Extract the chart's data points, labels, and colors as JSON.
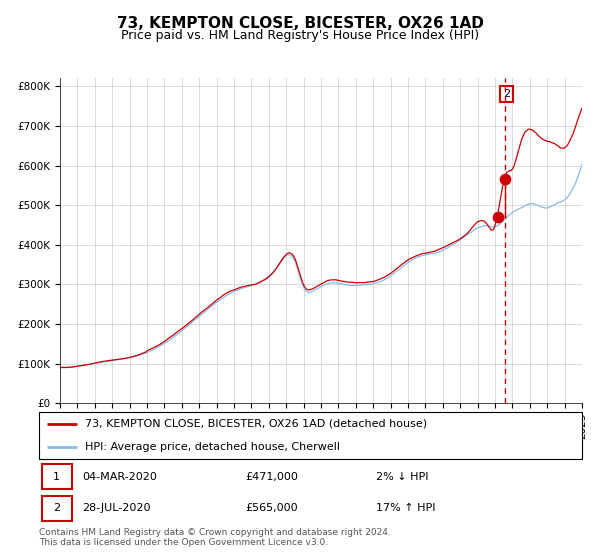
{
  "title": "73, KEMPTON CLOSE, BICESTER, OX26 1AD",
  "subtitle": "Price paid vs. HM Land Registry's House Price Index (HPI)",
  "legend_label_red": "73, KEMPTON CLOSE, BICESTER, OX26 1AD (detached house)",
  "legend_label_blue": "HPI: Average price, detached house, Cherwell",
  "annotation1_label": "1",
  "annotation1_date": "04-MAR-2020",
  "annotation1_price": "£471,000",
  "annotation1_pct": "2% ↓ HPI",
  "annotation2_label": "2",
  "annotation2_date": "28-JUL-2020",
  "annotation2_price": "£565,000",
  "annotation2_pct": "17% ↑ HPI",
  "footer": "Contains HM Land Registry data © Crown copyright and database right 2024.\nThis data is licensed under the Open Government Licence v3.0.",
  "ylim": [
    0,
    820000
  ],
  "yticks": [
    0,
    100000,
    200000,
    300000,
    400000,
    500000,
    600000,
    700000,
    800000
  ],
  "ytick_labels": [
    "£0",
    "£100K",
    "£200K",
    "£300K",
    "£400K",
    "£500K",
    "£600K",
    "£700K",
    "£800K"
  ],
  "year_start": 1995,
  "year_end": 2025,
  "sale1_year": 2020.17,
  "sale1_price": 471000,
  "sale2_year": 2020.58,
  "sale2_price": 565000,
  "red_color": "#cc0000",
  "blue_color": "#88bbee",
  "grid_color": "#cccccc",
  "vline_color": "#cc0000",
  "box_color": "#cc0000",
  "title_fontsize": 11,
  "subtitle_fontsize": 9,
  "axis_fontsize": 7.5,
  "legend_fontsize": 8,
  "footer_fontsize": 6.5
}
